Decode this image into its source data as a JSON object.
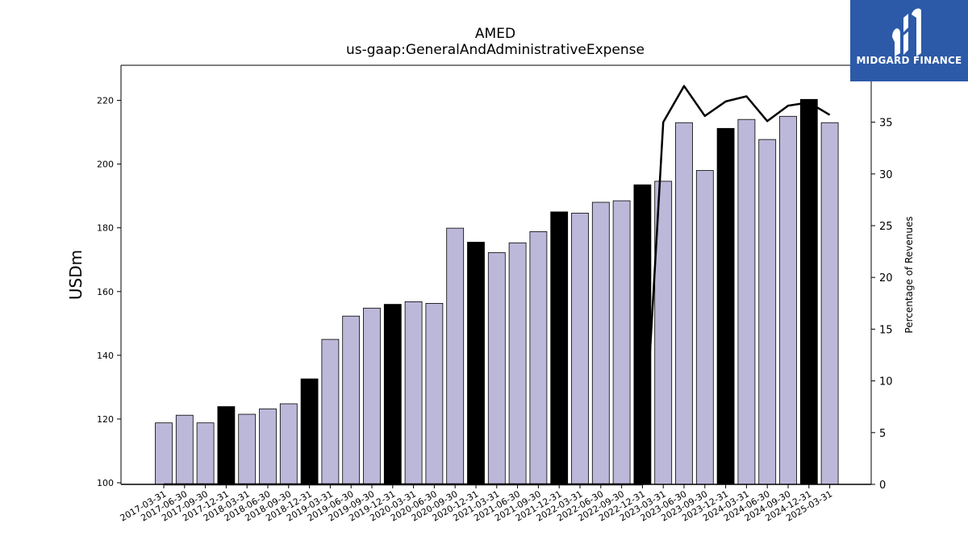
{
  "chart_data": {
    "type": "bar",
    "title": "AMED",
    "subtitle": "us-gaap:GeneralAndAdministrativeExpense",
    "ylabel": "USDm",
    "y2label": "Percentage of Revenues",
    "ylim": [
      99.5,
      231
    ],
    "y2lim": [
      0,
      40.5
    ],
    "yticks": [
      100,
      120,
      140,
      160,
      180,
      200,
      220
    ],
    "y2ticks": [
      0,
      5,
      10,
      15,
      20,
      25,
      30,
      35
    ],
    "categories": [
      "2017-03-31",
      "2017-06-30",
      "2017-09-30",
      "2017-12-31",
      "2018-03-31",
      "2018-06-30",
      "2018-09-30",
      "2018-12-31",
      "2019-03-31",
      "2019-06-30",
      "2019-09-30",
      "2019-12-31",
      "2020-03-31",
      "2020-06-30",
      "2020-09-30",
      "2020-12-31",
      "2021-03-31",
      "2021-06-30",
      "2021-09-30",
      "2021-12-31",
      "2022-03-31",
      "2022-06-30",
      "2022-09-30",
      "2022-12-31",
      "2023-03-31",
      "2023-06-30",
      "2023-09-30",
      "2023-12-31",
      "2024-03-31",
      "2024-06-30",
      "2024-09-30",
      "2024-12-31",
      "2025-03-31"
    ],
    "values": [
      118.8,
      121.2,
      118.8,
      123.9,
      121.5,
      123.2,
      124.8,
      132.6,
      145.0,
      152.3,
      154.8,
      156.0,
      156.8,
      156.3,
      179.9,
      175.5,
      172.2,
      175.3,
      178.8,
      185.0,
      184.6,
      188.0,
      188.5,
      193.5,
      194.6,
      213.0,
      198.0,
      211.2,
      214.0,
      207.7,
      215.0,
      220.3,
      213.0
    ],
    "annual_flags": [
      false,
      false,
      false,
      true,
      false,
      false,
      false,
      true,
      false,
      false,
      false,
      true,
      false,
      false,
      false,
      true,
      false,
      false,
      false,
      true,
      false,
      false,
      false,
      true,
      false,
      false,
      false,
      true,
      false,
      false,
      false,
      true,
      false
    ],
    "pct_of_revenues": [
      0,
      0,
      0,
      0,
      0,
      0,
      0,
      0,
      0,
      0,
      0,
      0,
      0,
      0,
      0,
      0,
      0,
      0,
      0,
      0,
      0,
      0,
      0,
      0,
      35.0,
      38.5,
      35.6,
      37.0,
      37.5,
      35.1,
      36.6,
      36.9,
      35.7
    ],
    "colors": {
      "quarter_bar": "#bcb8d9",
      "annual_bar": "#000000",
      "line": "#000000"
    },
    "grid": false,
    "legend": "none"
  },
  "brand": {
    "name": "MIDGARD FINANCE",
    "background": "#2c5aa8"
  }
}
